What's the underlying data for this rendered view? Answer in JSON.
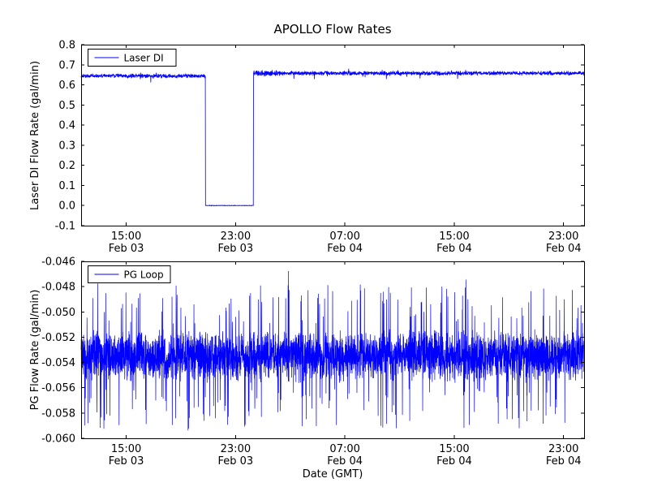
{
  "figure": {
    "xlabel": "Date (GMT)",
    "background_color": "#ffffff",
    "axes_color": "#000000",
    "line_color": "#0000ff",
    "x_range_hours": [
      11.7,
      48.5
    ],
    "xticks": [
      {
        "hour": 15,
        "time": "15:00",
        "date": "Feb 03"
      },
      {
        "hour": 23,
        "time": "23:00",
        "date": "Feb 03"
      },
      {
        "hour": 31,
        "time": "07:00",
        "date": "Feb 04"
      },
      {
        "hour": 39,
        "time": "15:00",
        "date": "Feb 04"
      },
      {
        "hour": 47,
        "time": "23:00",
        "date": "Feb 04"
      }
    ]
  },
  "chart_data": [
    {
      "type": "line",
      "title": "APOLLO Flow Rates",
      "ylabel": "Laser DI Flow Rate (gal/min)",
      "legend": "Laser DI",
      "legend_position": "upper left",
      "ylim": [
        -0.1,
        0.8
      ],
      "yticks": {
        "values": [
          0.8,
          0.7,
          0.6,
          0.5,
          0.4,
          0.3,
          0.2,
          0.1,
          0.0,
          -0.1
        ],
        "labels": [
          "0.8",
          "0.7",
          "0.6",
          "0.5",
          "0.4",
          "0.3",
          "0.2",
          "0.1",
          "0.0",
          "-0.1"
        ]
      },
      "series": {
        "name": "Laser DI",
        "color": "#0000ff",
        "baseline_before_dropout": 0.645,
        "baseline_after_dropout": 0.658,
        "noise_amplitude": 0.012,
        "dropout": {
          "start_hour": 20.8,
          "end_hour": 24.3,
          "value": 0.0
        }
      }
    },
    {
      "type": "line",
      "title": "",
      "ylabel": "PG Flow Rate (gal/min)",
      "legend": "PG Loop",
      "legend_position": "upper left",
      "ylim": [
        -0.06,
        -0.046
      ],
      "yticks": {
        "values": [
          -0.046,
          -0.048,
          -0.05,
          -0.052,
          -0.054,
          -0.056,
          -0.058,
          -0.06
        ],
        "labels": [
          "-0.046",
          "-0.048",
          "-0.050",
          "-0.052",
          "-0.054",
          "-0.056",
          "-0.058",
          "-0.060"
        ]
      },
      "series": {
        "name": "PG Loop",
        "color": "#0000ff",
        "center": -0.0535,
        "band_halfwidth": 0.0022,
        "spike_probability": 0.06,
        "spike_extra": 0.0032,
        "observed_min": -0.06,
        "observed_max": -0.047
      }
    }
  ]
}
